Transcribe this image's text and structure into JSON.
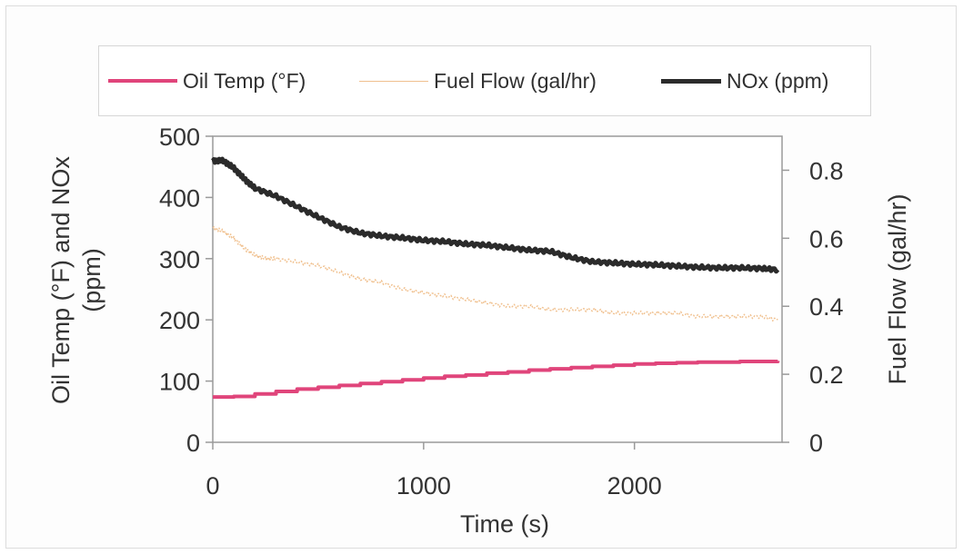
{
  "chart_data": {
    "type": "line",
    "xlabel": "Time (s)",
    "ylabel_left": "Oil Temp (°F) and NOx (ppm)",
    "ylabel_right": "Fuel Flow (gal/hr)",
    "xlim": [
      0,
      2700
    ],
    "ylim_left": [
      0,
      500
    ],
    "ylim_right": [
      0,
      0.9
    ],
    "x_ticks": [
      "0",
      "1000",
      "2000"
    ],
    "y_left_ticks": [
      "0",
      "100",
      "200",
      "300",
      "400",
      "500"
    ],
    "y_right_ticks": [
      "0",
      "0.2",
      "0.4",
      "0.6",
      "0.8"
    ],
    "grid": false,
    "legend_position": "top",
    "series": [
      {
        "name": "Oil Temp (°F)",
        "axis": "left",
        "color": "#e0457b",
        "x": [
          0,
          100,
          200,
          300,
          400,
          500,
          600,
          700,
          800,
          900,
          1000,
          1100,
          1200,
          1300,
          1400,
          1500,
          1600,
          1700,
          1800,
          1900,
          2000,
          2100,
          2200,
          2300,
          2400,
          2500,
          2600,
          2680
        ],
        "values": [
          74,
          75,
          79,
          83,
          87,
          90,
          93,
          96,
          99,
          102,
          105,
          108,
          110,
          113,
          115,
          118,
          120,
          122,
          124,
          126,
          128,
          129,
          130,
          131,
          131,
          132,
          132,
          133
        ]
      },
      {
        "name": "Fuel Flow (gal/hr)",
        "axis": "right",
        "color": "#f0c08e",
        "x": [
          0,
          50,
          100,
          150,
          200,
          250,
          300,
          400,
          500,
          600,
          700,
          800,
          900,
          1000,
          1100,
          1200,
          1300,
          1400,
          1500,
          1600,
          1700,
          1800,
          1900,
          2000,
          2100,
          2200,
          2300,
          2400,
          2500,
          2600,
          2680
        ],
        "values": [
          0.63,
          0.62,
          0.6,
          0.57,
          0.55,
          0.54,
          0.54,
          0.53,
          0.52,
          0.5,
          0.48,
          0.47,
          0.45,
          0.44,
          0.43,
          0.42,
          0.41,
          0.4,
          0.4,
          0.39,
          0.39,
          0.39,
          0.38,
          0.38,
          0.38,
          0.38,
          0.37,
          0.37,
          0.37,
          0.37,
          0.36
        ]
      },
      {
        "name": "NOx (ppm)",
        "axis": "left",
        "color": "#2b2b2b",
        "x": [
          0,
          50,
          100,
          150,
          200,
          300,
          400,
          500,
          600,
          700,
          800,
          900,
          1000,
          1100,
          1200,
          1300,
          1400,
          1500,
          1600,
          1700,
          1800,
          1900,
          2000,
          2100,
          2200,
          2300,
          2400,
          2500,
          2600,
          2680
        ],
        "values": [
          460,
          460,
          448,
          430,
          415,
          402,
          385,
          368,
          352,
          342,
          337,
          334,
          330,
          328,
          324,
          322,
          318,
          314,
          312,
          302,
          295,
          293,
          291,
          290,
          288,
          286,
          285,
          285,
          284,
          282
        ]
      }
    ]
  }
}
